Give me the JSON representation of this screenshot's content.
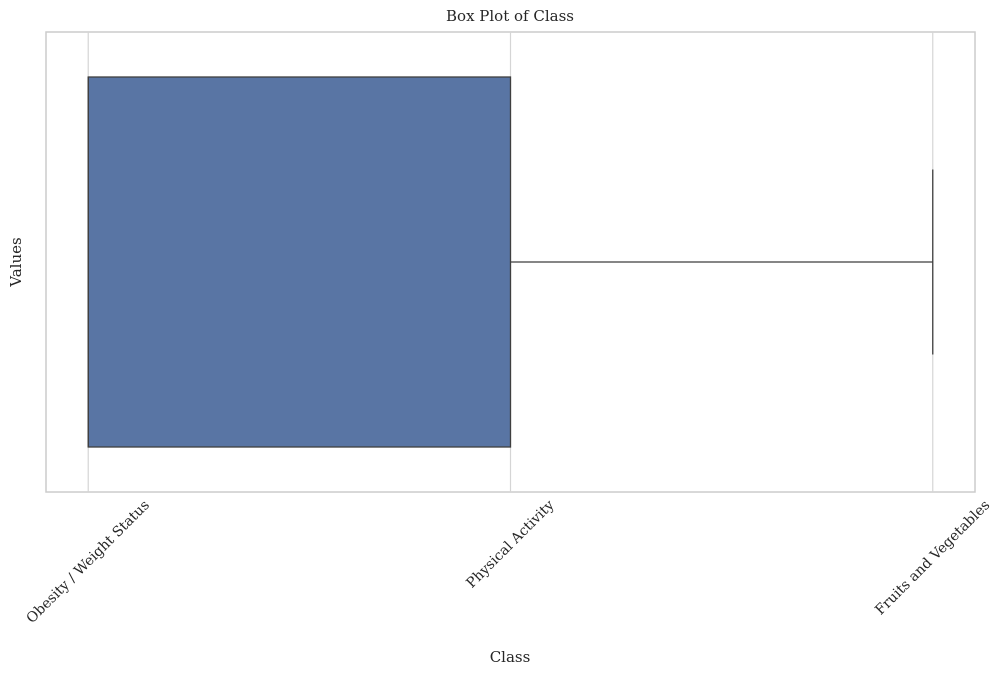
{
  "chart_data": {
    "type": "box",
    "title": "Box Plot of Class",
    "xlabel": "Class",
    "ylabel": "Values",
    "xlim": [
      -0.1,
      2.1
    ],
    "xticks": [
      {
        "value": 0,
        "label": "Obesity / Weight Status"
      },
      {
        "value": 1,
        "label": "Physical Activity"
      },
      {
        "value": 2,
        "label": "Fruits and Vegetables"
      }
    ],
    "box": {
      "min": 0,
      "q1": 0,
      "median": 0,
      "q3": 1,
      "max": 2
    },
    "color": "#5975a4",
    "grid": true
  }
}
